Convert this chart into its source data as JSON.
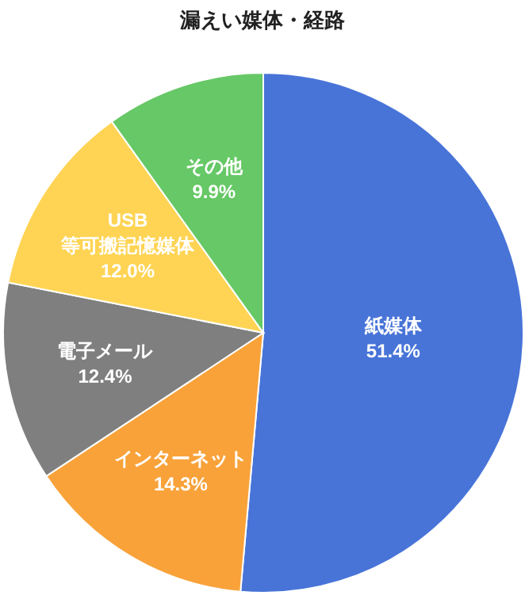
{
  "chart_data": {
    "type": "pie",
    "title": "漏えい媒体・経路",
    "categories": [
      "紙媒体",
      "インターネット",
      "電子メール",
      "USB 等可搬記憶媒体",
      "その他"
    ],
    "values": [
      51.4,
      14.3,
      12.4,
      12.0,
      9.9
    ],
    "value_labels": [
      "51.4%",
      "14.3%",
      "12.4%",
      "12.0%",
      "9.9%"
    ],
    "colors": [
      "#4874d8",
      "#f9a23a",
      "#7f7f7f",
      "#ffd454",
      "#66c866"
    ]
  }
}
